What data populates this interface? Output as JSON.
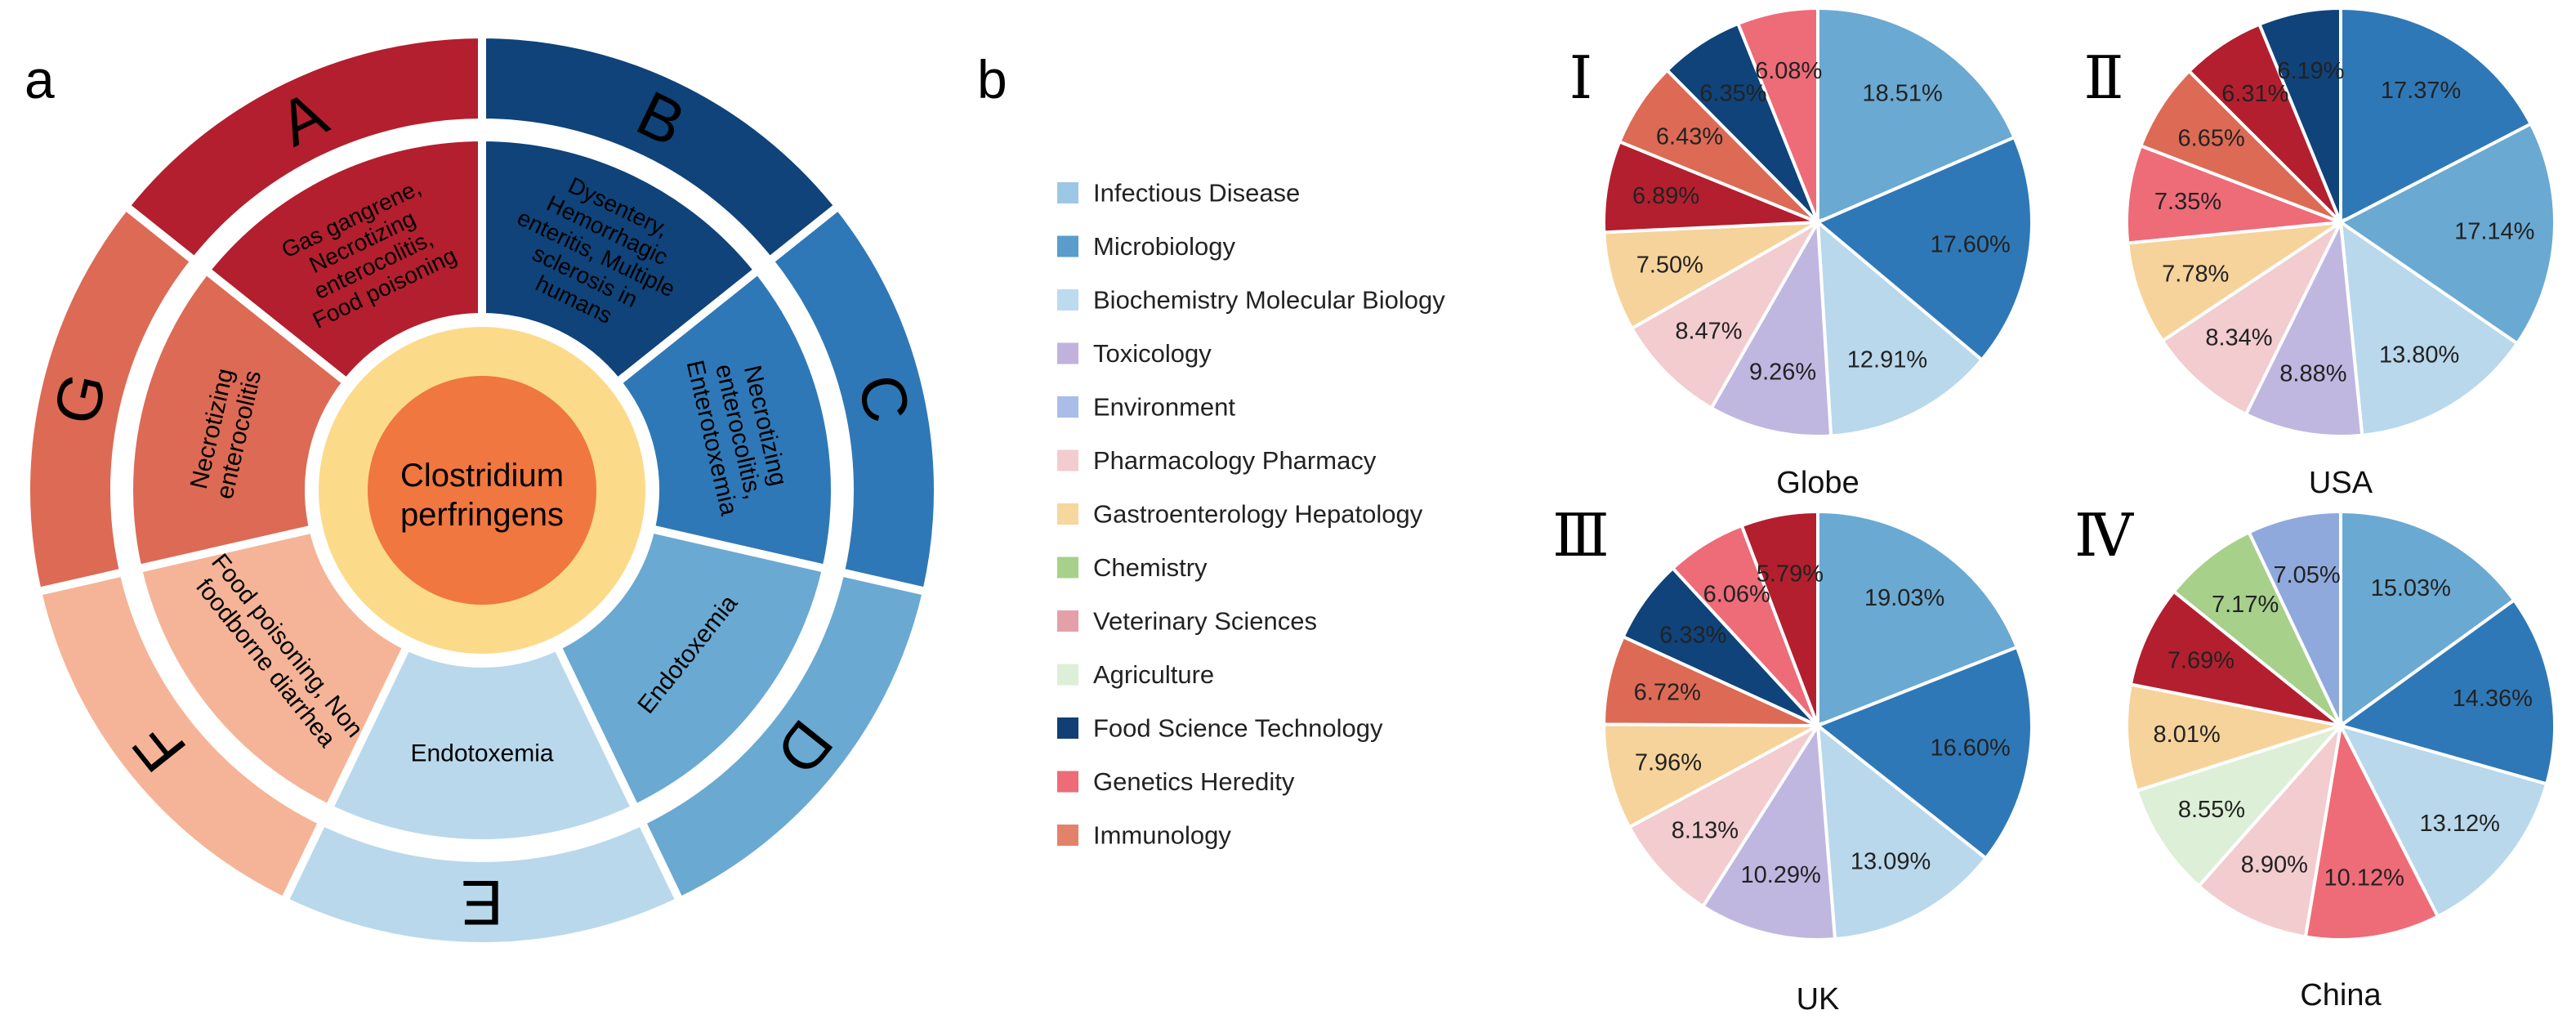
{
  "panel_a": {
    "label": "a",
    "center_label": [
      "Clostridium",
      "perfringens"
    ],
    "sectors": [
      {
        "letter": "A",
        "text": [
          "Gas gangrene,",
          "Necrotizing",
          "enterocolitis,",
          "Food poisoning"
        ],
        "color_outer": "#B31F2E",
        "color_inner": "#B31F2E"
      },
      {
        "letter": "B",
        "text": [
          "Dysentery,",
          "Hemorrhagic",
          "enteritis, Multiple",
          "sclerosis in",
          "humans"
        ],
        "color_outer": "#0F437A",
        "color_inner": "#0F437A"
      },
      {
        "letter": "C",
        "text": [
          "Necrotizing",
          "enterocolitis,",
          "Enterotoxemia"
        ],
        "color_outer": "#2F78B7",
        "color_inner": "#2F78B7"
      },
      {
        "letter": "D",
        "text": [
          "Endotoxemia"
        ],
        "color_outer": "#6AA9D2",
        "color_inner": "#6AA9D2"
      },
      {
        "letter": "E",
        "text": [
          "Endotoxemia"
        ],
        "color_outer": "#B9D8EB",
        "color_inner": "#B9D8EB"
      },
      {
        "letter": "F",
        "text": [
          "Food poisoning, Non",
          "foodborne diarrhea"
        ],
        "color_outer": "#F5B497",
        "color_inner": "#F5B497"
      },
      {
        "letter": "G",
        "text": [
          "Necrotizing",
          "enterocolitis"
        ],
        "color_outer": "#DD6A55",
        "color_inner": "#DD6A55"
      }
    ],
    "center_colors": {
      "ring": "#FBDB8A",
      "core": "#F0773F"
    }
  },
  "panel_b": {
    "label": "b",
    "legend": [
      {
        "label": "Infectious Disease",
        "color": "#9DC8E5"
      },
      {
        "label": "Microbiology",
        "color": "#5A9DCC"
      },
      {
        "label": "Biochemistry Molecular Biology",
        "color": "#BADCEE"
      },
      {
        "label": "Toxicology",
        "color": "#C0B2DD"
      },
      {
        "label": "Environment",
        "color": "#A9BDE6"
      },
      {
        "label": "Pharmacology Pharmacy",
        "color": "#F3CCCF"
      },
      {
        "label": "Gastroenterology Hepatology",
        "color": "#F6D79E"
      },
      {
        "label": "Chemistry",
        "color": "#A7D08B"
      },
      {
        "label": "Veterinary Sciences",
        "color": "#E3A0A8"
      },
      {
        "label": "Agriculture",
        "color": "#DDEFD6"
      },
      {
        "label": "Food Science Technology",
        "color": "#123F73"
      },
      {
        "label": "Genetics Heredity",
        "color": "#EE6B78"
      },
      {
        "label": "Immunology",
        "color": "#E3826A"
      }
    ]
  },
  "chart_data": [
    {
      "type": "pie",
      "numeral": "Ⅰ",
      "title": "Globe",
      "values": [
        18.51,
        17.6,
        12.91,
        9.26,
        8.47,
        7.5,
        6.89,
        6.43,
        6.35,
        6.08
      ],
      "labels": [
        "18.51%",
        "17.60%",
        "12.91%",
        "9.26%",
        "8.47%",
        "7.50%",
        "6.89%",
        "6.43%",
        "6.35%",
        "6.08%"
      ],
      "colors": [
        "#6AA9D2",
        "#2F78B7",
        "#B9D8EB",
        "#C0B7E0",
        "#F2CCCE",
        "#F6D39B",
        "#B31F2E",
        "#DD6A55",
        "#0F437A",
        "#EE6B78"
      ]
    },
    {
      "type": "pie",
      "numeral": "Ⅱ",
      "title": "USA",
      "values": [
        17.37,
        17.14,
        13.8,
        8.88,
        8.34,
        7.78,
        7.35,
        6.65,
        6.31,
        6.19
      ],
      "labels": [
        "17.37%",
        "17.14%",
        "13.80%",
        "8.88%",
        "8.34%",
        "7.78%",
        "7.35%",
        "6.65%",
        "6.31%",
        "6.19%"
      ],
      "colors": [
        "#2F78B7",
        "#6AA9D2",
        "#B9D8EB",
        "#C0B7E0",
        "#F2CCCE",
        "#F6D39B",
        "#EE6B78",
        "#DD6A55",
        "#B31F2E",
        "#0F437A"
      ]
    },
    {
      "type": "pie",
      "numeral": "Ⅲ",
      "title": "UK",
      "values": [
        19.03,
        16.6,
        13.09,
        10.29,
        8.13,
        7.96,
        6.72,
        6.33,
        6.06,
        5.79
      ],
      "labels": [
        "19.03%",
        "16.60%",
        "13.09%",
        "10.29%",
        "8.13%",
        "7.96%",
        "6.72%",
        "6.33%",
        "6.06%",
        "5.79%"
      ],
      "colors": [
        "#6AA9D2",
        "#2F78B7",
        "#B9D8EB",
        "#C0B7E0",
        "#F2CCCE",
        "#F6D39B",
        "#DD6A55",
        "#0F437A",
        "#EE6B78",
        "#B31F2E"
      ]
    },
    {
      "type": "pie",
      "numeral": "Ⅳ",
      "title": "China",
      "values": [
        15.03,
        14.36,
        13.12,
        10.12,
        8.9,
        8.55,
        8.01,
        7.69,
        7.17,
        7.05
      ],
      "labels": [
        "15.03%",
        "14.36%",
        "13.12%",
        "10.12%",
        "8.90%",
        "8.55%",
        "8.01%",
        "7.69%",
        "7.17%",
        "7.05%"
      ],
      "colors": [
        "#6AA9D2",
        "#2F78B7",
        "#B9D8EB",
        "#EE6B78",
        "#F2CCCE",
        "#DDEFD6",
        "#F6D39B",
        "#B31F2E",
        "#A7D08B",
        "#8FA9DD"
      ]
    }
  ]
}
